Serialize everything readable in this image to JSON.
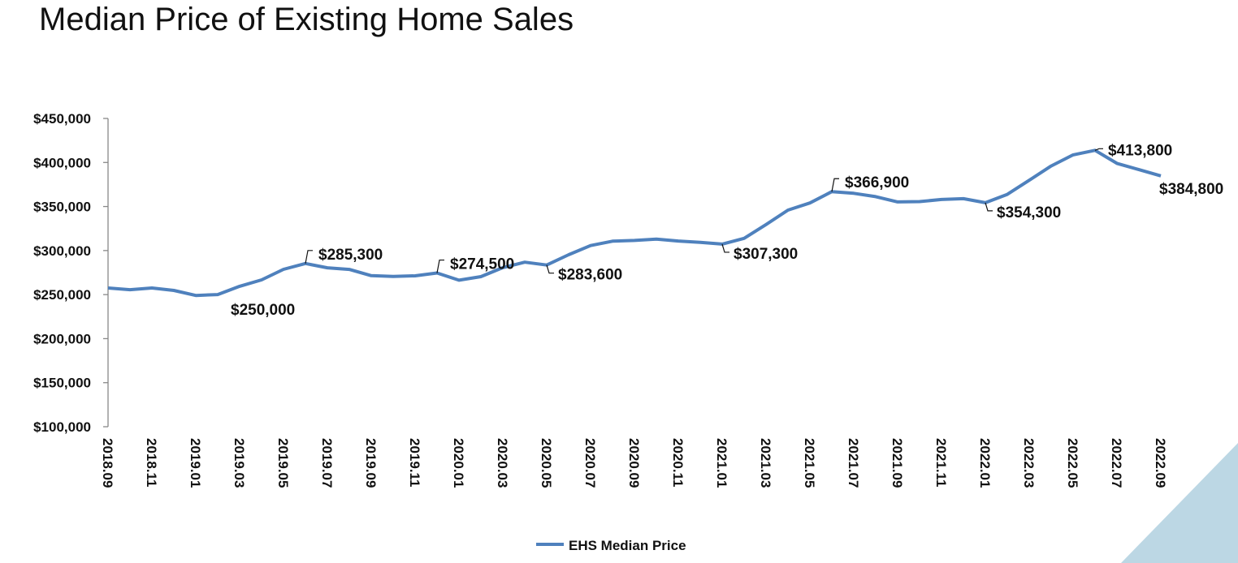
{
  "chart_data": {
    "type": "line",
    "title": "Median Price of Existing Home Sales",
    "xlabel": "",
    "ylabel": "",
    "ylim": [
      100000,
      450000
    ],
    "y_ticks": [
      100000,
      150000,
      200000,
      250000,
      300000,
      350000,
      400000,
      450000
    ],
    "y_tick_labels": [
      "$100,000",
      "$150,000",
      "$200,000",
      "$250,000",
      "$300,000",
      "$350,000",
      "$400,000",
      "$450,000"
    ],
    "x": [
      "2018.09",
      "2018.10",
      "2018.11",
      "2018.12",
      "2019.01",
      "2019.02",
      "2019.03",
      "2019.04",
      "2019.05",
      "2019.06",
      "2019.07",
      "2019.08",
      "2019.09",
      "2019.10",
      "2019.11",
      "2019.12",
      "2020.01",
      "2020.02",
      "2020.03",
      "2020.04",
      "2020.05",
      "2020.06",
      "2020.07",
      "2020.08",
      "2020.09",
      "2020.10",
      "2020.11",
      "2020.12",
      "2021.01",
      "2021.02",
      "2021.03",
      "2021.04",
      "2021.05",
      "2021.06",
      "2021.07",
      "2021.08",
      "2021.09",
      "2021.10",
      "2021.11",
      "2021.12",
      "2022.01",
      "2022.02",
      "2022.03",
      "2022.04",
      "2022.05",
      "2022.06",
      "2022.07",
      "2022.08",
      "2022.09"
    ],
    "x_tick_labels": [
      "2018.09",
      "2018.11",
      "2019.01",
      "2019.03",
      "2019.05",
      "2019.07",
      "2019.09",
      "2019.11",
      "2020.01",
      "2020.03",
      "2020.05",
      "2020.07",
      "2020.09",
      "2020.11",
      "2021.01",
      "2021.03",
      "2021.05",
      "2021.07",
      "2021.09",
      "2021.11",
      "2022.01",
      "2022.03",
      "2022.05",
      "2022.07",
      "2022.09"
    ],
    "series": [
      {
        "name": "EHS Median Price",
        "color": "#4f81bd",
        "values": [
          257500,
          255600,
          257500,
          254700,
          249000,
          250000,
          259400,
          266700,
          278700,
          285300,
          280400,
          278600,
          271500,
          270600,
          271300,
          274500,
          266300,
          270400,
          280600,
          286800,
          283600,
          295300,
          305700,
          310600,
          311500,
          313000,
          310800,
          309400,
          307300,
          313900,
          329500,
          345900,
          354000,
          366900,
          365000,
          361200,
          355200,
          355600,
          358000,
          358900,
          354300,
          363800,
          379800,
          396000,
          408600,
          413800,
          399000,
          391900,
          384800
        ]
      }
    ],
    "data_labels": [
      {
        "x": "2019.02",
        "text": "$250,000",
        "pos": "below"
      },
      {
        "x": "2019.06",
        "text": "$285,300",
        "pos": "above-right"
      },
      {
        "x": "2019.12",
        "text": "$274,500",
        "pos": "above-right"
      },
      {
        "x": "2020.05",
        "text": "$283,600",
        "pos": "below-right"
      },
      {
        "x": "2021.01",
        "text": "$307,300",
        "pos": "below-right"
      },
      {
        "x": "2021.06",
        "text": "$366,900",
        "pos": "above-right"
      },
      {
        "x": "2022.01",
        "text": "$354,300",
        "pos": "below-right"
      },
      {
        "x": "2022.06",
        "text": "$413,800",
        "pos": "right"
      },
      {
        "x": "2022.09",
        "text": "$384,800",
        "pos": "below"
      }
    ],
    "legend": {
      "position": "bottom",
      "entries": [
        "EHS Median Price"
      ]
    },
    "grid": false
  },
  "decor": {
    "corner_color": "#bcd7e4"
  }
}
